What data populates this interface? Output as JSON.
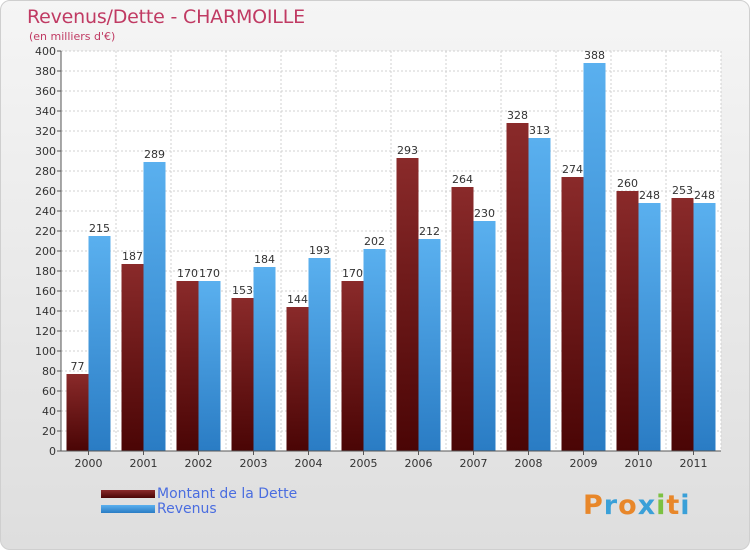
{
  "header": {
    "title": "Revenus/Dette - CHARMOILLE",
    "subtitle": "(en milliers d'€)"
  },
  "legend": {
    "dette": "Montant de la Dette",
    "revenus": "Revenus"
  },
  "logo": {
    "text": "Proxiti",
    "letters": [
      "P",
      "r",
      "o",
      "x",
      "i",
      "t",
      "i"
    ],
    "colors": [
      "#e8872a",
      "#3aa0d8",
      "#e8872a",
      "#3aa0d8",
      "#7cc142",
      "#e8872a",
      "#3aa0d8"
    ]
  },
  "colors": {
    "dette_top": "#8a2a2a",
    "dette_bottom": "#4a0505",
    "revenus_top": "#5ab0ef",
    "revenus_bottom": "#2a7cc4"
  },
  "chart_data": {
    "type": "bar",
    "title": "Revenus/Dette - CHARMOILLE",
    "subtitle": "(en milliers d'€)",
    "categories": [
      "2000",
      "2001",
      "2002",
      "2003",
      "2004",
      "2005",
      "2006",
      "2007",
      "2008",
      "2009",
      "2010",
      "2011"
    ],
    "series": [
      {
        "name": "Montant de la Dette",
        "values": [
          77,
          187,
          170,
          153,
          144,
          170,
          293,
          264,
          328,
          274,
          260,
          253
        ]
      },
      {
        "name": "Revenus",
        "values": [
          215,
          289,
          170,
          184,
          193,
          202,
          212,
          230,
          313,
          388,
          248,
          248
        ]
      }
    ],
    "ylim": [
      0,
      400
    ],
    "ytick_step": 20,
    "grid": true,
    "legend_position": "bottom-left"
  }
}
